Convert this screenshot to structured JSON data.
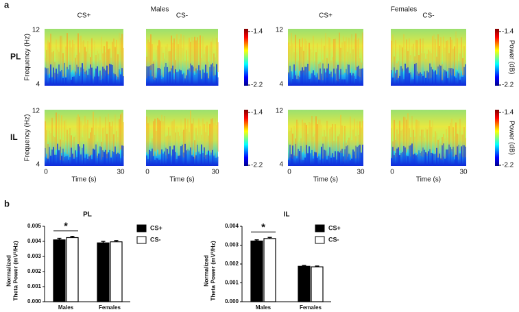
{
  "spectrograms": {
    "panel_label": "a",
    "groups": [
      {
        "name": "Males",
        "conditions": [
          "CS+",
          "CS-"
        ]
      },
      {
        "name": "Females",
        "conditions": [
          "CS+",
          "CS-"
        ]
      }
    ],
    "regions": [
      "PL",
      "IL"
    ],
    "y_label": "Frequency (Hz)",
    "y_ticks": [
      12,
      4
    ],
    "x_label": "Time (s)",
    "x_ticks": [
      0,
      30
    ],
    "colorbar": {
      "ticks": [
        -1.4,
        -2.2
      ],
      "label": "Power (dB)"
    }
  },
  "bar_panel_label": "b",
  "chart_data": [
    {
      "type": "bar",
      "title": "PL",
      "y_label": [
        "Normalized",
        "Theta Power (mV²/Hz)"
      ],
      "categories": [
        "Males",
        "Females"
      ],
      "series": [
        {
          "name": "CS+",
          "color": "#000000",
          "values": [
            0.0041,
            0.0039
          ],
          "errors": [
            0.0001,
            0.0001
          ]
        },
        {
          "name": "CS-",
          "color": "#ffffff",
          "values": [
            0.00425,
            0.00397
          ],
          "errors": [
            8e-05,
            8e-05
          ]
        }
      ],
      "ylim": [
        0,
        0.005
      ],
      "yticks": [
        {
          "value": 0,
          "label": "0.000"
        },
        {
          "value": 0.001,
          "label": "0.001"
        },
        {
          "value": 0.002,
          "label": "0.002"
        },
        {
          "value": 0.003,
          "label": "0.003"
        },
        {
          "value": 0.004,
          "label": "0.004"
        },
        {
          "value": 0.005,
          "label": "0.005"
        }
      ],
      "significance": "*"
    },
    {
      "type": "bar",
      "title": "IL",
      "y_label": [
        "Normalized",
        "Theta Power (mV²/Hz)"
      ],
      "categories": [
        "Males",
        "Females"
      ],
      "series": [
        {
          "name": "CS+",
          "color": "#000000",
          "values": [
            0.00322,
            0.00188
          ],
          "errors": [
            6e-05,
            4e-05
          ]
        },
        {
          "name": "CS-",
          "color": "#ffffff",
          "values": [
            0.00335,
            0.00185
          ],
          "errors": [
            6e-05,
            4e-05
          ]
        }
      ],
      "ylim": [
        0,
        0.004
      ],
      "yticks": [
        {
          "value": 0,
          "label": "0.000"
        },
        {
          "value": 0.001,
          "label": "0.001"
        },
        {
          "value": 0.002,
          "label": "0.002"
        },
        {
          "value": 0.003,
          "label": "0.003"
        },
        {
          "value": 0.004,
          "label": "0.004"
        }
      ],
      "significance": "*"
    }
  ]
}
